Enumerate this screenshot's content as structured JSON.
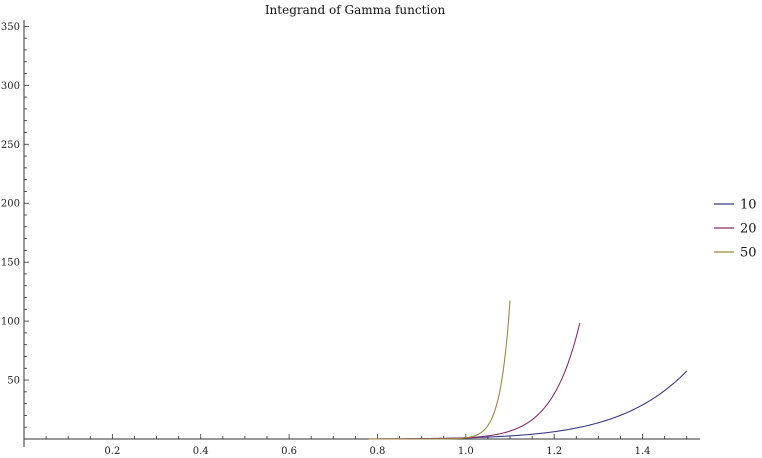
{
  "chart_data": {
    "type": "line",
    "title": "Integrand of Gamma function",
    "xlabel": "",
    "ylabel": "",
    "xlim": [
      0,
      1.53
    ],
    "ylim": [
      0,
      352
    ],
    "x_ticks_major": [
      0.2,
      0.4,
      0.6,
      0.8,
      1.0,
      1.2,
      1.4
    ],
    "x_tick_labels": [
      "0.2",
      "0.4",
      "0.6",
      "0.8",
      "1.0",
      "1.2",
      "1.4"
    ],
    "y_ticks_major": [
      50,
      100,
      150,
      200,
      250,
      300,
      350
    ],
    "y_tick_labels": [
      "50",
      "100",
      "150",
      "200",
      "250",
      "300",
      "350"
    ],
    "grid": false,
    "legend_position": "right",
    "series": [
      {
        "name": "10",
        "color": "#3b3b8f",
        "exponent": 10,
        "x_start": 0.78,
        "x_end": 1.5
      },
      {
        "name": "20",
        "color": "#8b2f6b",
        "exponent": 20,
        "x_start": 0.78,
        "x_end": 1.258
      },
      {
        "name": "50",
        "color": "#9a8a3a",
        "exponent": 50,
        "x_start": 0.78,
        "x_end": 1.1
      }
    ]
  }
}
